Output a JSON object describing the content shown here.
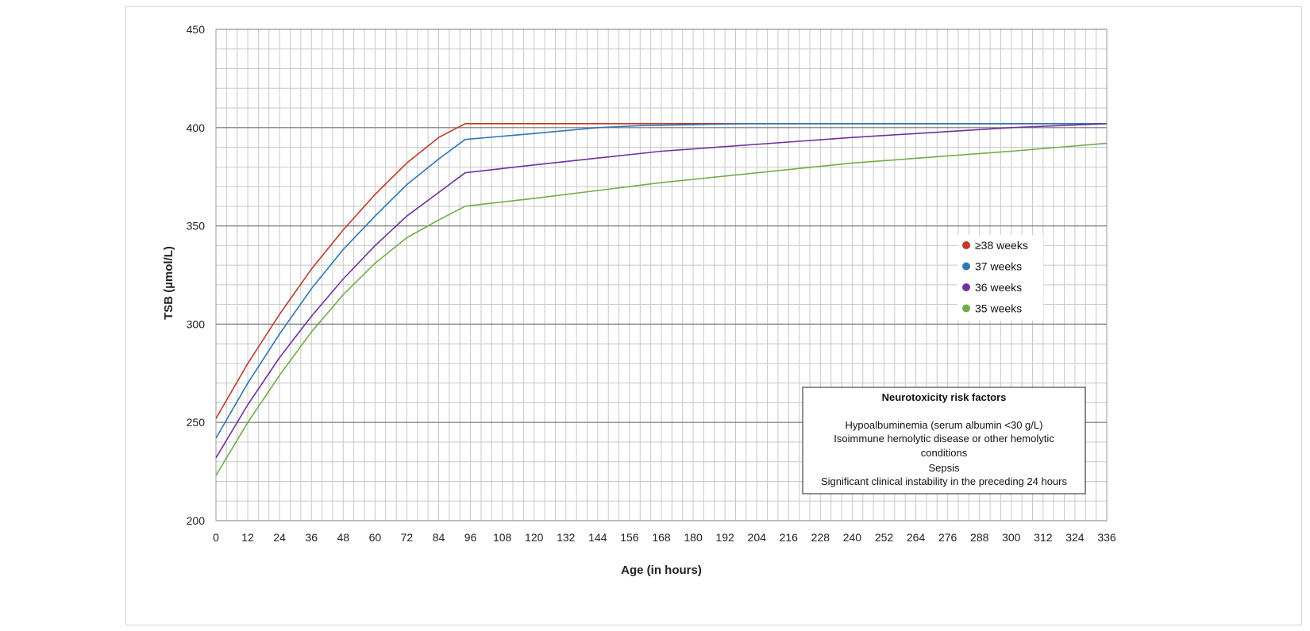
{
  "chart_data": {
    "type": "line",
    "title": "",
    "xlabel": "Age (in hours)",
    "ylabel": "TSB (µmol/L)",
    "xlim": [
      0,
      336
    ],
    "ylim": [
      200,
      450
    ],
    "x_ticks": [
      0,
      12,
      24,
      36,
      48,
      60,
      72,
      84,
      96,
      108,
      120,
      132,
      144,
      156,
      168,
      180,
      192,
      204,
      216,
      228,
      240,
      252,
      264,
      276,
      288,
      300,
      312,
      324,
      336
    ],
    "y_ticks": [
      200,
      250,
      300,
      350,
      400,
      450
    ],
    "grid": true,
    "legend_position": "right",
    "series": [
      {
        "name": "≥38 weeks",
        "color": "#c0392b",
        "x": [
          0,
          12,
          24,
          36,
          48,
          60,
          72,
          84,
          94,
          120,
          168,
          240,
          336
        ],
        "y": [
          252,
          280,
          305,
          328,
          348,
          366,
          382,
          395,
          402,
          402,
          402,
          402,
          402
        ]
      },
      {
        "name": "37 weeks",
        "color": "#2e75b6",
        "x": [
          0,
          12,
          24,
          36,
          48,
          60,
          72,
          84,
          94,
          120,
          144,
          160,
          200,
          336
        ],
        "y": [
          242,
          270,
          295,
          318,
          338,
          355,
          371,
          384,
          394,
          397,
          400,
          401,
          402,
          402
        ]
      },
      {
        "name": "36 weeks",
        "color": "#7030a0",
        "x": [
          0,
          12,
          24,
          36,
          48,
          60,
          72,
          84,
          94,
          120,
          168,
          240,
          300,
          336
        ],
        "y": [
          232,
          259,
          283,
          304,
          323,
          340,
          355,
          367,
          377,
          381,
          388,
          395,
          400,
          402
        ]
      },
      {
        "name": "35 weeks",
        "color": "#70ad47",
        "x": [
          0,
          12,
          24,
          36,
          48,
          60,
          72,
          84,
          94,
          120,
          168,
          240,
          300,
          336
        ],
        "y": [
          223,
          250,
          274,
          296,
          315,
          331,
          344,
          353,
          360,
          364,
          372,
          382,
          388,
          392
        ]
      }
    ]
  },
  "risk_box": {
    "title": "Neurotoxicity risk factors",
    "items": [
      "Hypoalbuminemia (serum albumin <30 g/L)",
      "Isoimmune hemolytic disease or other hemolytic",
      "conditions",
      "Sepsis",
      "Significant clinical instability in the preceding 24 hours"
    ]
  }
}
